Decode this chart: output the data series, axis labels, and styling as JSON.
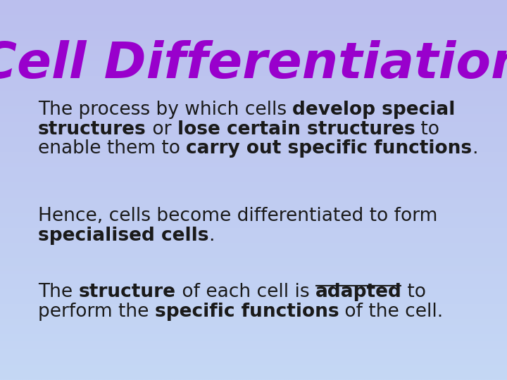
{
  "title": "Cell Differentiation",
  "title_color": "#9900CC",
  "title_fontsize": 52,
  "bg_color_top": "#BBBFEE",
  "bg_color_bottom": "#C5D8F5",
  "body_fontsize": 19,
  "body_color": "#1a1a1a",
  "paragraph1_segments": [
    {
      "text": "The process by which cells ",
      "bold": false,
      "underline": false
    },
    {
      "text": "develop special\nstructures",
      "bold": true,
      "underline": false
    },
    {
      "text": " or ",
      "bold": false,
      "underline": false
    },
    {
      "text": "lose certain structures",
      "bold": true,
      "underline": false
    },
    {
      "text": " to\nenable them to ",
      "bold": false,
      "underline": false
    },
    {
      "text": "carry out specific functions",
      "bold": true,
      "underline": false
    },
    {
      "text": ".",
      "bold": false,
      "underline": false
    }
  ],
  "paragraph2_segments": [
    {
      "text": "Hence, cells become differentiated to form\n",
      "bold": false,
      "underline": false
    },
    {
      "text": "specialised cells",
      "bold": true,
      "underline": false
    },
    {
      "text": ".",
      "bold": false,
      "underline": false
    }
  ],
  "paragraph3_segments": [
    {
      "text": "The ",
      "bold": false,
      "underline": false
    },
    {
      "text": "structure",
      "bold": true,
      "underline": false
    },
    {
      "text": " of each cell is ",
      "bold": false,
      "underline": false
    },
    {
      "text": "adapted",
      "bold": true,
      "underline": true
    },
    {
      "text": " to\nperform the ",
      "bold": false,
      "underline": false
    },
    {
      "text": "specific functions",
      "bold": true,
      "underline": false
    },
    {
      "text": " of the cell.",
      "bold": false,
      "underline": false
    }
  ]
}
